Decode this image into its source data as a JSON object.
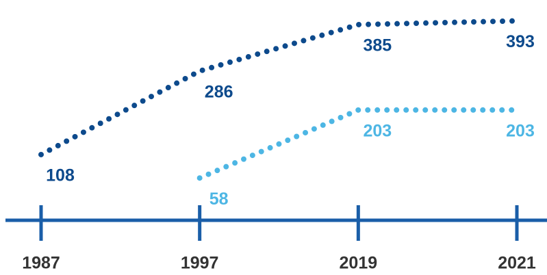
{
  "chart_data": {
    "type": "line",
    "categories": [
      "1987",
      "1997",
      "2019",
      "2021"
    ],
    "series": [
      {
        "color": "#0d4a8c",
        "values": [
          108,
          286,
          385,
          393
        ]
      },
      {
        "color": "#4db6e4",
        "values": [
          null,
          58,
          203,
          203
        ]
      }
    ],
    "ylim": [
      0,
      420
    ],
    "axis_color": "#1a5ea8"
  }
}
